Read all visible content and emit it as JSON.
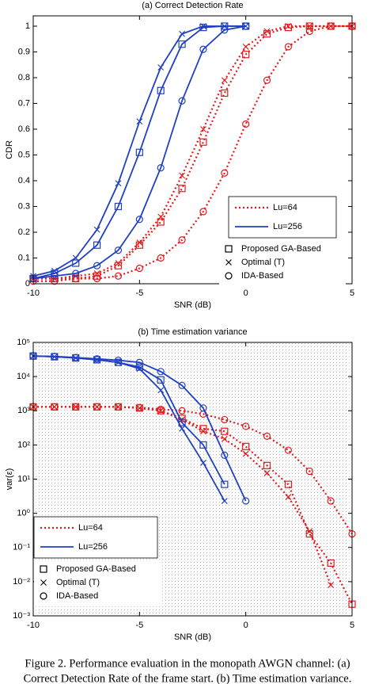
{
  "chart_data": [
    {
      "type": "line",
      "title": "(a) Correct Detection Rate",
      "xlabel": "SNR (dB)",
      "ylabel": "CDR",
      "x": [
        -10,
        -9,
        -8,
        -7,
        -6,
        -5,
        -4,
        -3,
        -2,
        -1,
        0,
        1,
        2,
        3,
        4,
        5
      ],
      "xlim": [
        -10,
        5
      ],
      "xticks": [
        -10,
        -5,
        0,
        5
      ],
      "ylim": [
        0,
        1.04
      ],
      "yticks": [
        0,
        0.1,
        0.2,
        0.3,
        0.4,
        0.5,
        0.6,
        0.7,
        0.8,
        0.9,
        1
      ],
      "log": false,
      "legend_lines": [
        {
          "name": "Lu=64",
          "color": "#e41a1c",
          "dash": "dotted"
        },
        {
          "name": "Lu=256",
          "color": "#1f3fc4",
          "dash": "solid"
        }
      ],
      "legend_corner": "lower right",
      "series": [
        {
          "name": "Proposed GA-Based",
          "marker": "square",
          "color": "#e41a1c",
          "dash": "dotted",
          "values": [
            0.02,
            0.02,
            0.02,
            0.03,
            0.07,
            0.15,
            0.24,
            0.37,
            0.55,
            0.74,
            0.89,
            0.97,
            0.995,
            1,
            1,
            1
          ]
        },
        {
          "name": "Optimal (T)",
          "marker": "cross",
          "color": "#e41a1c",
          "dash": "dotted",
          "values": [
            0.02,
            0.02,
            0.03,
            0.04,
            0.08,
            0.16,
            0.26,
            0.42,
            0.6,
            0.79,
            0.92,
            0.98,
            1,
            1,
            1,
            1
          ]
        },
        {
          "name": "IDA-Based",
          "marker": "circle",
          "color": "#e41a1c",
          "dash": "dotted",
          "values": [
            0.01,
            0.01,
            0.02,
            0.02,
            0.03,
            0.06,
            0.1,
            0.17,
            0.28,
            0.43,
            0.62,
            0.79,
            0.92,
            0.98,
            1,
            1
          ]
        },
        {
          "name": "Proposed GA-Based",
          "marker": "square",
          "color": "#1f3fc4",
          "dash": "solid",
          "values": [
            0.02,
            0.04,
            0.08,
            0.15,
            0.3,
            0.51,
            0.75,
            0.93,
            0.995,
            1,
            1,
            null,
            null,
            null,
            null,
            null
          ]
        },
        {
          "name": "Optimal (T)",
          "marker": "cross",
          "color": "#1f3fc4",
          "dash": "solid",
          "values": [
            0.03,
            0.05,
            0.1,
            0.21,
            0.39,
            0.63,
            0.84,
            0.97,
            1,
            1,
            1,
            null,
            null,
            null,
            null,
            null
          ]
        },
        {
          "name": "IDA-Based",
          "marker": "circle",
          "color": "#1f3fc4",
          "dash": "solid",
          "values": [
            0.02,
            0.03,
            0.04,
            0.07,
            0.13,
            0.25,
            0.45,
            0.71,
            0.91,
            0.985,
            1,
            null,
            null,
            null,
            null,
            null
          ]
        }
      ]
    },
    {
      "type": "line",
      "title": "(b) Time estimation variance",
      "xlabel": "SNR (dB)",
      "ylabel": "var(ε)",
      "x": [
        -10,
        -9,
        -8,
        -7,
        -6,
        -5,
        -4,
        -3,
        -2,
        -1,
        0,
        1,
        2,
        3,
        4,
        5
      ],
      "xlim": [
        -10,
        5
      ],
      "xticks": [
        -10,
        -5,
        0,
        5
      ],
      "ylim": [
        0.001,
        100000
      ],
      "log": true,
      "yticks": [
        {
          "value": 100000,
          "label": "10⁵"
        },
        {
          "value": 10000,
          "label": "10⁴"
        },
        {
          "value": 1000,
          "label": "10³"
        },
        {
          "value": 100,
          "label": "10²"
        },
        {
          "value": 10,
          "label": "10¹"
        },
        {
          "value": 1,
          "label": "10⁰"
        },
        {
          "value": 0.1,
          "label": "10⁻¹"
        },
        {
          "value": 0.01,
          "label": "10⁻²"
        },
        {
          "value": 0.001,
          "label": "10⁻³"
        }
      ],
      "legend_lines": [
        {
          "name": "Lu=64",
          "color": "#e41a1c",
          "dash": "dotted"
        },
        {
          "name": "Lu=256",
          "color": "#1f3fc4",
          "dash": "solid"
        }
      ],
      "legend_corner": "lower left",
      "series": [
        {
          "name": "Proposed GA-Based",
          "marker": "square",
          "color": "#e41a1c",
          "dash": "dotted",
          "values": [
            1300,
            1300,
            1300,
            1300,
            1300,
            1200,
            1000,
            600,
            300,
            250,
            90,
            25,
            7,
            0.25,
            0.035,
            0.0022
          ]
        },
        {
          "name": "Optimal (T)",
          "marker": "cross",
          "color": "#e41a1c",
          "dash": "dotted",
          "values": [
            1300,
            1300,
            1300,
            1300,
            1300,
            1200,
            1000,
            550,
            250,
            150,
            55,
            15,
            3,
            0.3,
            0.008,
            null
          ]
        },
        {
          "name": "IDA-Based",
          "marker": "circle",
          "color": "#e41a1c",
          "dash": "dotted",
          "values": [
            1300,
            1300,
            1300,
            1300,
            1300,
            1250,
            1100,
            1000,
            800,
            550,
            350,
            180,
            70,
            17,
            2.3,
            0.25
          ]
        },
        {
          "name": "Proposed GA-Based",
          "marker": "square",
          "color": "#1f3fc4",
          "dash": "solid",
          "values": [
            40000,
            38000,
            35000,
            31000,
            26000,
            19000,
            8000,
            450,
            100,
            7,
            null,
            null,
            null,
            null,
            null,
            null
          ]
        },
        {
          "name": "Optimal (T)",
          "marker": "cross",
          "color": "#1f3fc4",
          "dash": "solid",
          "values": [
            40000,
            38000,
            35000,
            31000,
            26000,
            17000,
            4000,
            300,
            30,
            2.3,
            null,
            null,
            null,
            null,
            null,
            null
          ]
        },
        {
          "name": "IDA-Based",
          "marker": "circle",
          "color": "#1f3fc4",
          "dash": "solid",
          "values": [
            40000,
            39000,
            36000,
            33000,
            30000,
            26000,
            14000,
            5500,
            1200,
            50,
            2.3,
            null,
            null,
            null,
            null,
            null
          ]
        }
      ]
    }
  ],
  "caption": [
    "Figure 2.    Performance evaluation in the monopath AWGN channel: (a)",
    "Correct Detection Rate of the frame start. (b) Time estimation variance."
  ]
}
